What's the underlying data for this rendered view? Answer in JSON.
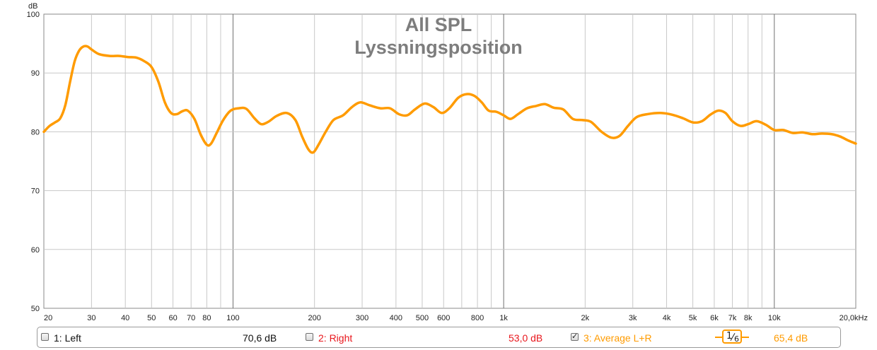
{
  "chart_data": {
    "type": "line",
    "title": "All SPL",
    "subtitle": "Lyssningsposition",
    "ylabel": "dB",
    "xscale": "log",
    "xlim": [
      20,
      20000
    ],
    "ylim": [
      50,
      100
    ],
    "yticks": [
      "100",
      "90",
      "80",
      "70",
      "60",
      "50"
    ],
    "xticks": [
      {
        "v": 20,
        "label": "20"
      },
      {
        "v": 30,
        "label": "30"
      },
      {
        "v": 40,
        "label": "40"
      },
      {
        "v": 50,
        "label": "50"
      },
      {
        "v": 60,
        "label": "60"
      },
      {
        "v": 70,
        "label": "70"
      },
      {
        "v": 80,
        "label": "80"
      },
      {
        "v": 100,
        "label": "100"
      },
      {
        "v": 200,
        "label": "200"
      },
      {
        "v": 300,
        "label": "300"
      },
      {
        "v": 400,
        "label": "400"
      },
      {
        "v": 500,
        "label": "500"
      },
      {
        "v": 600,
        "label": "600"
      },
      {
        "v": 800,
        "label": "800"
      },
      {
        "v": 1000,
        "label": "1k"
      },
      {
        "v": 2000,
        "label": "2k"
      },
      {
        "v": 3000,
        "label": "3k"
      },
      {
        "v": 4000,
        "label": "4k"
      },
      {
        "v": 5000,
        "label": "5k"
      },
      {
        "v": 6000,
        "label": "6k"
      },
      {
        "v": 7000,
        "label": "7k"
      },
      {
        "v": 8000,
        "label": "8k"
      },
      {
        "v": 10000,
        "label": "10k"
      },
      {
        "v": 20000,
        "label": "20,0kHz"
      }
    ],
    "grid": true,
    "series": [
      {
        "name": "3: Average L+R",
        "color": "#ff9b00",
        "points": [
          [
            20,
            80.0
          ],
          [
            21,
            81.0
          ],
          [
            22,
            81.6
          ],
          [
            23,
            82.3
          ],
          [
            24,
            84.5
          ],
          [
            25,
            88.5
          ],
          [
            26,
            92.0
          ],
          [
            27,
            93.8
          ],
          [
            28,
            94.5
          ],
          [
            29,
            94.5
          ],
          [
            30,
            94.0
          ],
          [
            32,
            93.2
          ],
          [
            35,
            92.9
          ],
          [
            38,
            92.9
          ],
          [
            41,
            92.7
          ],
          [
            44,
            92.6
          ],
          [
            47,
            92.0
          ],
          [
            50,
            91.0
          ],
          [
            53,
            88.5
          ],
          [
            56,
            85.0
          ],
          [
            59,
            83.2
          ],
          [
            62,
            83.0
          ],
          [
            65,
            83.5
          ],
          [
            68,
            83.6
          ],
          [
            72,
            82.2
          ],
          [
            76,
            79.5
          ],
          [
            80,
            77.8
          ],
          [
            83,
            78.0
          ],
          [
            87,
            79.8
          ],
          [
            92,
            82.0
          ],
          [
            98,
            83.6
          ],
          [
            105,
            84.0
          ],
          [
            112,
            83.9
          ],
          [
            120,
            82.3
          ],
          [
            127,
            81.3
          ],
          [
            135,
            81.7
          ],
          [
            145,
            82.7
          ],
          [
            158,
            83.2
          ],
          [
            170,
            82.0
          ],
          [
            180,
            79.2
          ],
          [
            190,
            77.0
          ],
          [
            198,
            76.5
          ],
          [
            207,
            77.8
          ],
          [
            220,
            80.0
          ],
          [
            235,
            82.0
          ],
          [
            255,
            82.8
          ],
          [
            275,
            84.2
          ],
          [
            295,
            85.0
          ],
          [
            320,
            84.5
          ],
          [
            350,
            84.0
          ],
          [
            380,
            84.0
          ],
          [
            410,
            83.0
          ],
          [
            440,
            82.8
          ],
          [
            470,
            83.8
          ],
          [
            510,
            84.8
          ],
          [
            550,
            84.2
          ],
          [
            590,
            83.2
          ],
          [
            630,
            84.0
          ],
          [
            680,
            85.8
          ],
          [
            730,
            86.4
          ],
          [
            780,
            86.1
          ],
          [
            830,
            85.0
          ],
          [
            880,
            83.6
          ],
          [
            940,
            83.4
          ],
          [
            1000,
            82.8
          ],
          [
            1060,
            82.2
          ],
          [
            1130,
            83.0
          ],
          [
            1220,
            84.0
          ],
          [
            1320,
            84.4
          ],
          [
            1420,
            84.7
          ],
          [
            1530,
            84.1
          ],
          [
            1660,
            83.8
          ],
          [
            1800,
            82.2
          ],
          [
            1950,
            82.0
          ],
          [
            2100,
            81.7
          ],
          [
            2300,
            80.0
          ],
          [
            2500,
            79.0
          ],
          [
            2680,
            79.3
          ],
          [
            2880,
            81.0
          ],
          [
            3100,
            82.5
          ],
          [
            3400,
            83.0
          ],
          [
            3800,
            83.2
          ],
          [
            4200,
            82.9
          ],
          [
            4600,
            82.3
          ],
          [
            5000,
            81.6
          ],
          [
            5400,
            81.8
          ],
          [
            5800,
            82.9
          ],
          [
            6200,
            83.6
          ],
          [
            6600,
            83.2
          ],
          [
            7000,
            81.8
          ],
          [
            7500,
            81.0
          ],
          [
            8000,
            81.3
          ],
          [
            8600,
            81.8
          ],
          [
            9300,
            81.2
          ],
          [
            10000,
            80.3
          ],
          [
            10800,
            80.3
          ],
          [
            11700,
            79.8
          ],
          [
            12700,
            79.9
          ],
          [
            13800,
            79.6
          ],
          [
            15000,
            79.7
          ],
          [
            16300,
            79.6
          ],
          [
            17500,
            79.2
          ],
          [
            18800,
            78.5
          ],
          [
            20000,
            78.0
          ]
        ]
      }
    ]
  },
  "legend": [
    {
      "label": "1: Left",
      "checked": false,
      "value": "70,6 dB",
      "color": "#111111",
      "value_color": "#111111"
    },
    {
      "label": "2: Right",
      "checked": false,
      "value": "53,0 dB",
      "color": "#e8161c",
      "value_color": "#e8161c"
    },
    {
      "label": "3: Average L+R",
      "checked": true,
      "value": "65,4 dB",
      "color": "#ff9b00",
      "value_color": "#ff9b00"
    }
  ],
  "smoothing": {
    "numerator": "1",
    "denominator": "6"
  },
  "colors": {
    "grid_major": "#707070",
    "grid_minor": "#c8c8c8",
    "axis_text": "#222222",
    "title": "#7d7d7d"
  }
}
